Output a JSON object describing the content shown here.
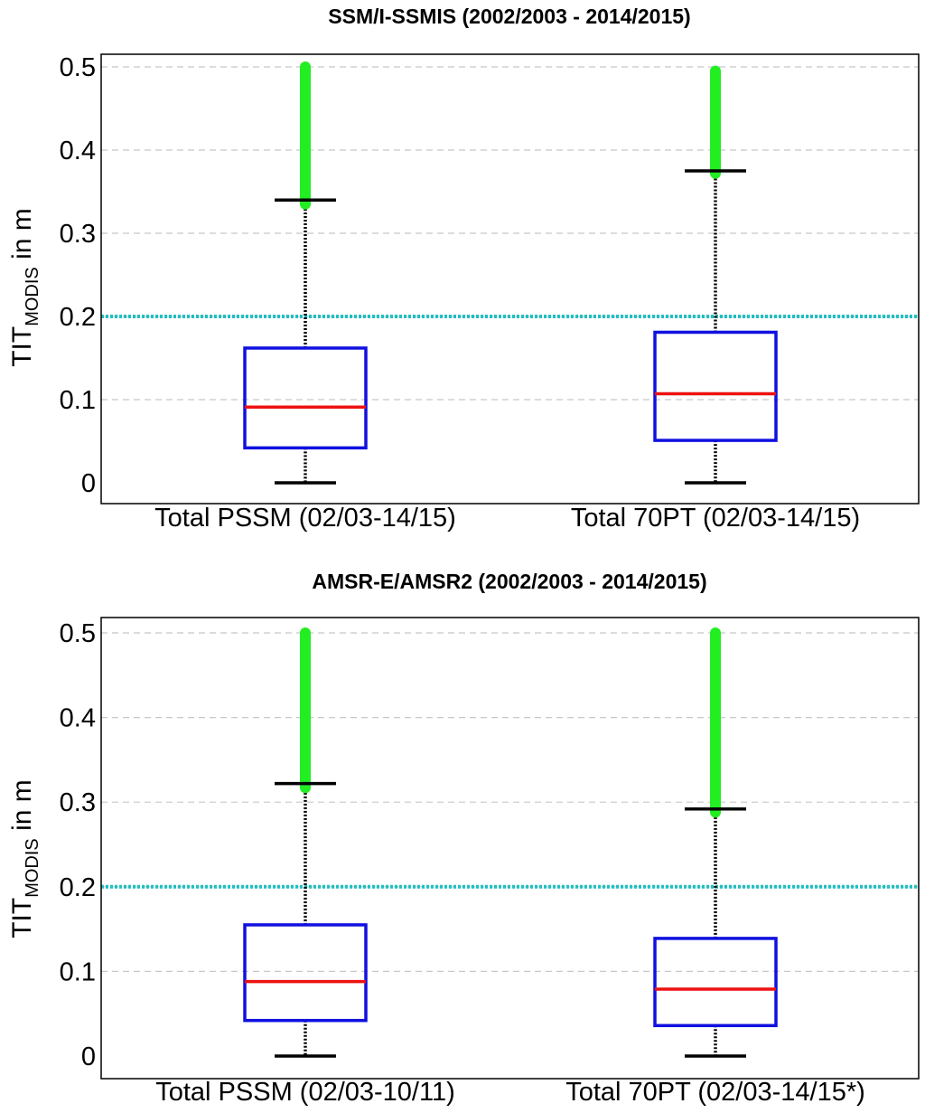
{
  "chart_data": [
    {
      "type": "box",
      "title": "SSM/I-SSMIS (2002/2003 - 2014/2015)",
      "ylabel": {
        "main": "TIT",
        "subscript": "MODIS",
        "suffix": " in m"
      },
      "ylim": [
        -0.025,
        0.52
      ],
      "yticks": [
        0,
        0.1,
        0.2,
        0.3,
        0.4,
        0.5
      ],
      "ytick_labels": [
        "0",
        "0.1",
        "0.2",
        "0.3",
        "0.4",
        "0.5"
      ],
      "grid": "horizontal dashed",
      "reference_line": {
        "y": 0.2,
        "color": "#20c0c0",
        "style": "dotted"
      },
      "categories": [
        "Total PSSM (02/03-14/15)",
        "Total 70PT (02/03-14/15)"
      ],
      "boxes": [
        {
          "whisker_low": 0.0,
          "q1": 0.042,
          "median": 0.091,
          "q3": 0.162,
          "whisker_high": 0.34,
          "outliers_range": [
            0.335,
            0.5
          ]
        },
        {
          "whisker_low": 0.0,
          "q1": 0.051,
          "median": 0.107,
          "q3": 0.181,
          "whisker_high": 0.375,
          "outliers_range": [
            0.372,
            0.495
          ]
        }
      ]
    },
    {
      "type": "box",
      "title": "AMSR-E/AMSR2 (2002/2003 - 2014/2015)",
      "ylabel": {
        "main": "TIT",
        "subscript": "MODIS",
        "suffix": " in m"
      },
      "ylim": [
        -0.025,
        0.52
      ],
      "yticks": [
        0,
        0.1,
        0.2,
        0.3,
        0.4,
        0.5
      ],
      "ytick_labels": [
        "0",
        "0.1",
        "0.2",
        "0.3",
        "0.4",
        "0.5"
      ],
      "grid": "horizontal dashed",
      "reference_line": {
        "y": 0.2,
        "color": "#20c0c0",
        "style": "dotted"
      },
      "categories": [
        "Total PSSM (02/03-10/11)",
        "Total 70PT (02/03-14/15*)"
      ],
      "boxes": [
        {
          "whisker_low": 0.0,
          "q1": 0.042,
          "median": 0.088,
          "q3": 0.155,
          "whisker_high": 0.322,
          "outliers_range": [
            0.317,
            0.5
          ]
        },
        {
          "whisker_low": 0.0,
          "q1": 0.036,
          "median": 0.079,
          "q3": 0.139,
          "whisker_high": 0.292,
          "outliers_range": [
            0.288,
            0.5
          ]
        }
      ]
    }
  ],
  "colors": {
    "box": "#1010e0",
    "median": "#ee1111",
    "whisker": "#000000",
    "outlier": "#22ee22",
    "reference": "#20c0c0",
    "grid": "#c8c8c8"
  }
}
